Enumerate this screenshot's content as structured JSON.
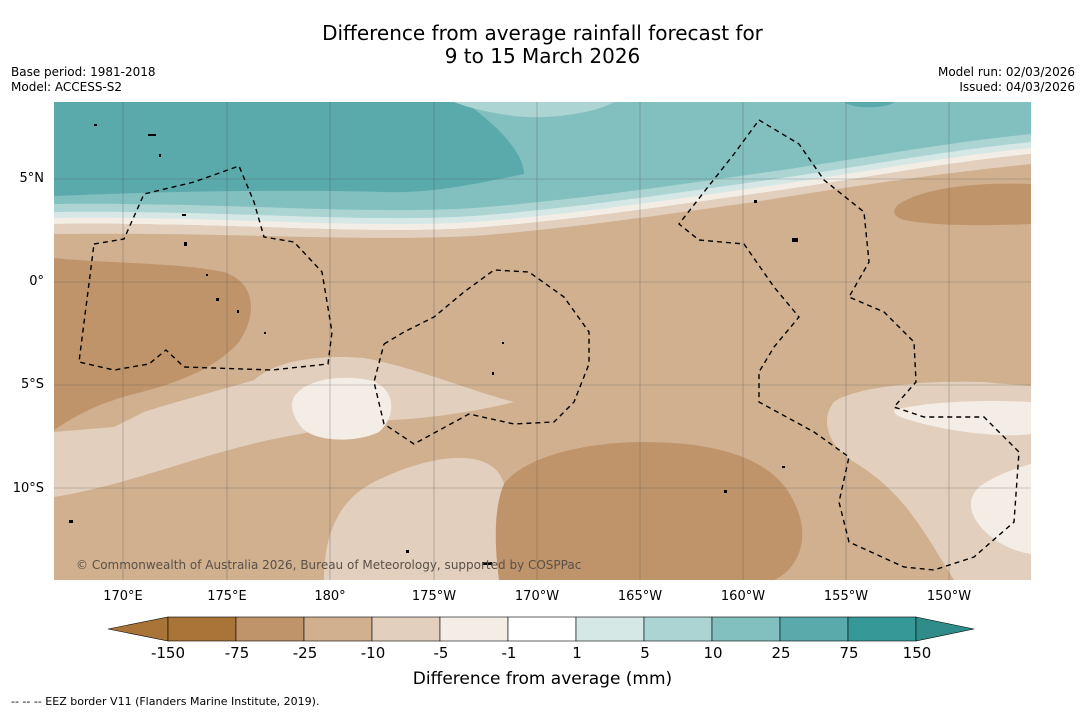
{
  "title": {
    "line1": "Difference from average rainfall forecast for",
    "line2": "9 to 15 March 2026"
  },
  "meta_left": {
    "base_period": "Base period: 1981-2018",
    "model": "Model: ACCESS-S2"
  },
  "meta_right": {
    "model_run": "Model run: 02/03/2026",
    "issued": "Issued: 04/03/2026"
  },
  "lat_labels": [
    "5°N",
    "0°",
    "5°S",
    "10°S"
  ],
  "lon_labels": [
    "170°E",
    "175°E",
    "180°",
    "175°W",
    "170°W",
    "165°W",
    "160°W",
    "155°W",
    "150°W"
  ],
  "copyright": "© Commonwealth of Australia 2026, Bureau of Meteorology, supported by COSPPac",
  "colorbar": {
    "labels": [
      "-150",
      "-75",
      "-25",
      "-10",
      "-5",
      "-1",
      "1",
      "5",
      "10",
      "25",
      "75",
      "150"
    ],
    "colors": [
      "#a87438",
      "#bf946a",
      "#d0b08f",
      "#e2cfbd",
      "#f3ede6",
      "#ffffff",
      "#d5e8e6",
      "#abd4d3",
      "#82bfbf",
      "#5aa9ab",
      "#359a97"
    ],
    "extend_low_color": "#a87438",
    "extend_high_color": "#2f8c89",
    "title": "Difference from average (mm)"
  },
  "footnote": "--  --  -- EEZ border V11 (Flanders Marine Institute, 2019)."
}
